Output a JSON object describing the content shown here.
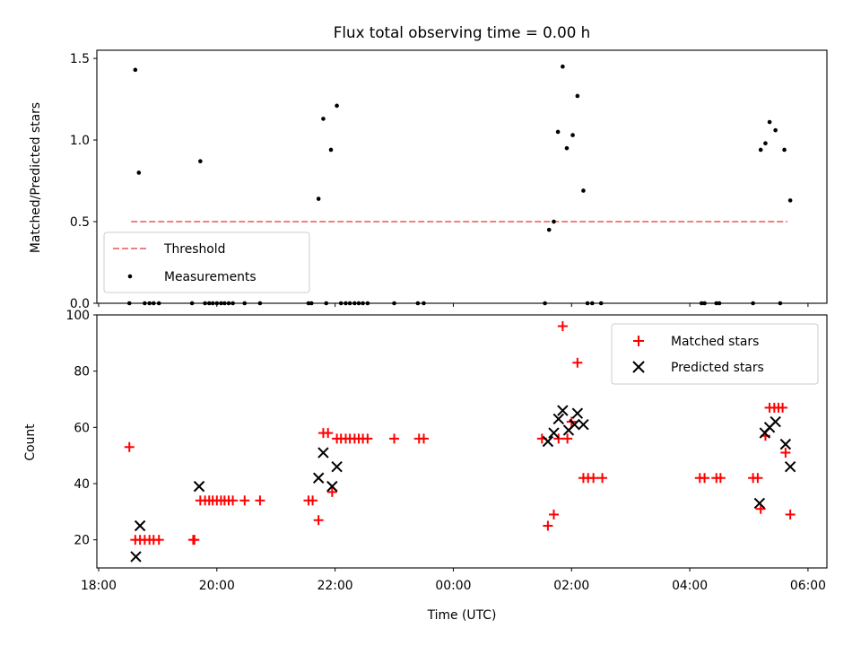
{
  "chart_data": [
    {
      "type": "scatter",
      "title": "Flux total observing time = 0.00 h",
      "ylabel": "Matched/Predicted stars",
      "ylim": [
        0,
        1.55
      ],
      "yticks": [
        0.0,
        0.5,
        1.0,
        1.5
      ],
      "ytick_labels": [
        "0.0",
        "0.5",
        "1.0",
        "1.5"
      ],
      "xlim_hours": [
        17.97,
        30.32
      ],
      "legend_position": "lower-left",
      "threshold": {
        "name": "Threshold",
        "value": 0.5,
        "x_range_hours": [
          18.55,
          29.65
        ],
        "color": "#f08080",
        "style": "dashed"
      },
      "series": [
        {
          "name": "Measurements",
          "color": "#000000",
          "marker": "dot",
          "points": [
            [
              18.52,
              0
            ],
            [
              18.62,
              1.43
            ],
            [
              18.68,
              0.8
            ],
            [
              18.78,
              0
            ],
            [
              18.86,
              0
            ],
            [
              18.93,
              0
            ],
            [
              19.02,
              0
            ],
            [
              19.58,
              0
            ],
            [
              19.72,
              0.87
            ],
            [
              19.8,
              0
            ],
            [
              19.87,
              0
            ],
            [
              19.93,
              0
            ],
            [
              20.0,
              0
            ],
            [
              20.07,
              0
            ],
            [
              20.13,
              0
            ],
            [
              20.2,
              0
            ],
            [
              20.27,
              0
            ],
            [
              20.47,
              0
            ],
            [
              20.73,
              0
            ],
            [
              21.55,
              0
            ],
            [
              21.6,
              0
            ],
            [
              21.72,
              0.64
            ],
            [
              21.8,
              1.13
            ],
            [
              21.85,
              0
            ],
            [
              21.93,
              0.94
            ],
            [
              22.03,
              1.21
            ],
            [
              22.1,
              0
            ],
            [
              22.18,
              0
            ],
            [
              22.25,
              0
            ],
            [
              22.33,
              0
            ],
            [
              22.4,
              0
            ],
            [
              22.47,
              0
            ],
            [
              22.55,
              0
            ],
            [
              23.0,
              0
            ],
            [
              23.4,
              0
            ],
            [
              23.5,
              0
            ],
            [
              25.55,
              0
            ],
            [
              25.62,
              0.45
            ],
            [
              25.7,
              0.5
            ],
            [
              25.77,
              1.05
            ],
            [
              25.85,
              1.45
            ],
            [
              25.92,
              0.95
            ],
            [
              26.02,
              1.03
            ],
            [
              26.1,
              1.27
            ],
            [
              26.2,
              0.69
            ],
            [
              26.27,
              0
            ],
            [
              26.35,
              0
            ],
            [
              26.5,
              0
            ],
            [
              28.2,
              0
            ],
            [
              28.25,
              0
            ],
            [
              28.45,
              0
            ],
            [
              28.5,
              0
            ],
            [
              29.07,
              0
            ],
            [
              29.2,
              0.94
            ],
            [
              29.28,
              0.98
            ],
            [
              29.35,
              1.11
            ],
            [
              29.45,
              1.06
            ],
            [
              29.53,
              0
            ],
            [
              29.6,
              0.94
            ],
            [
              29.7,
              0.63
            ]
          ]
        }
      ]
    },
    {
      "type": "scatter",
      "xlabel": "Time (UTC)",
      "ylabel": "Count",
      "ylim": [
        10,
        100
      ],
      "yticks": [
        20,
        40,
        60,
        80,
        100
      ],
      "ytick_labels": [
        "20",
        "40",
        "60",
        "80",
        "100"
      ],
      "xlim_hours": [
        17.97,
        30.32
      ],
      "xticks_hours": [
        18,
        20,
        22,
        24,
        26,
        28,
        30
      ],
      "xtick_labels": [
        "18:00",
        "20:00",
        "22:00",
        "00:00",
        "02:00",
        "04:00",
        "06:00"
      ],
      "legend_position": "upper-right",
      "series": [
        {
          "name": "Matched stars",
          "color": "#ff0000",
          "marker": "plus",
          "points": [
            [
              18.52,
              53
            ],
            [
              18.62,
              20
            ],
            [
              18.7,
              20
            ],
            [
              18.78,
              20
            ],
            [
              18.86,
              20
            ],
            [
              18.93,
              20
            ],
            [
              19.02,
              20
            ],
            [
              19.6,
              20
            ],
            [
              19.62,
              20
            ],
            [
              19.72,
              34
            ],
            [
              19.8,
              34
            ],
            [
              19.87,
              34
            ],
            [
              19.93,
              34
            ],
            [
              20.0,
              34
            ],
            [
              20.07,
              34
            ],
            [
              20.13,
              34
            ],
            [
              20.2,
              34
            ],
            [
              20.27,
              34
            ],
            [
              20.47,
              34
            ],
            [
              20.73,
              34
            ],
            [
              21.55,
              34
            ],
            [
              21.62,
              34
            ],
            [
              21.72,
              27
            ],
            [
              21.8,
              58
            ],
            [
              21.88,
              58
            ],
            [
              21.95,
              37
            ],
            [
              22.03,
              56
            ],
            [
              22.1,
              56
            ],
            [
              22.18,
              56
            ],
            [
              22.25,
              56
            ],
            [
              22.33,
              56
            ],
            [
              22.4,
              56
            ],
            [
              22.47,
              56
            ],
            [
              22.55,
              56
            ],
            [
              23.0,
              56
            ],
            [
              23.42,
              56
            ],
            [
              23.5,
              56
            ],
            [
              25.5,
              56
            ],
            [
              25.6,
              25
            ],
            [
              25.7,
              29
            ],
            [
              25.78,
              56
            ],
            [
              25.85,
              96
            ],
            [
              25.93,
              56
            ],
            [
              26.0,
              62
            ],
            [
              26.1,
              83
            ],
            [
              26.2,
              42
            ],
            [
              26.28,
              42
            ],
            [
              26.37,
              42
            ],
            [
              26.52,
              42
            ],
            [
              28.17,
              42
            ],
            [
              28.25,
              42
            ],
            [
              28.45,
              42
            ],
            [
              28.52,
              42
            ],
            [
              29.07,
              42
            ],
            [
              29.15,
              42
            ],
            [
              29.2,
              31
            ],
            [
              29.28,
              57
            ],
            [
              29.35,
              67
            ],
            [
              29.43,
              67
            ],
            [
              29.5,
              67
            ],
            [
              29.57,
              67
            ],
            [
              29.62,
              51
            ],
            [
              29.7,
              29
            ]
          ]
        },
        {
          "name": "Predicted stars",
          "color": "#000000",
          "marker": "x",
          "points": [
            [
              18.63,
              14
            ],
            [
              18.7,
              25
            ],
            [
              19.7,
              39
            ],
            [
              21.72,
              42
            ],
            [
              21.8,
              51
            ],
            [
              21.95,
              39
            ],
            [
              22.03,
              46
            ],
            [
              25.6,
              55
            ],
            [
              25.7,
              58
            ],
            [
              25.78,
              63
            ],
            [
              25.85,
              66
            ],
            [
              25.95,
              59
            ],
            [
              26.05,
              61
            ],
            [
              26.1,
              65
            ],
            [
              26.2,
              61
            ],
            [
              29.18,
              33
            ],
            [
              29.27,
              58
            ],
            [
              29.35,
              60
            ],
            [
              29.45,
              62
            ],
            [
              29.62,
              54
            ],
            [
              29.7,
              46
            ]
          ]
        }
      ]
    }
  ]
}
